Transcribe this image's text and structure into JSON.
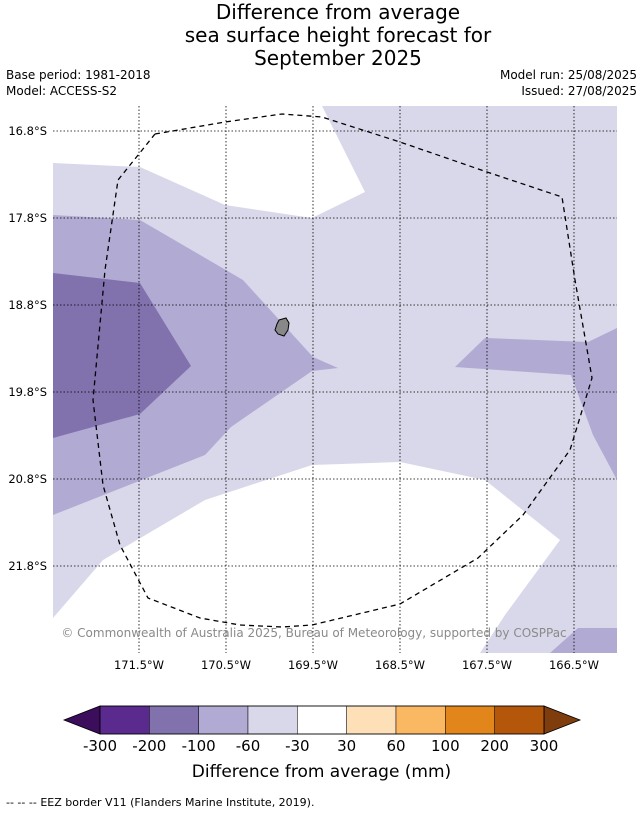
{
  "title": [
    "Difference from average",
    "sea surface height forecast for",
    "September 2025"
  ],
  "base_period": "Base period: 1981-2018",
  "model": "Model: ACCESS-S2",
  "model_run": "Model run: 25/08/2025",
  "issued": "Issued: 27/08/2025",
  "attribution": "© Commonwealth of Australia 2025, Bureau of Meteorology, supported by COSPPac",
  "lat_labels": [
    "16.8°S",
    "17.8°S",
    "18.8°S",
    "19.8°S",
    "20.8°S",
    "21.8°S"
  ],
  "lon_labels": [
    "171.5°W",
    "170.5°W",
    "169.5°W",
    "168.5°W",
    "167.5°W",
    "166.5°W"
  ],
  "colorbar": {
    "title": "Difference from average (mm)",
    "ticks": [
      "-300",
      "-200",
      "-100",
      "-60",
      "-30",
      "30",
      "60",
      "100",
      "200",
      "300"
    ],
    "colors": [
      "#5b2a8e",
      "#8172ae",
      "#b1aad2",
      "#d8d8ea",
      "#ffffff",
      "#fde0b8",
      "#fbb862",
      "#e2851a",
      "#b4570a"
    ],
    "under_color": "#3b0d5c",
    "over_color": "#7f3c0d"
  },
  "legend": {
    "eez_symbol": "-- -- --",
    "eez_text": "EEZ border V11 (Flanders Marine Institute, 2019)."
  }
}
